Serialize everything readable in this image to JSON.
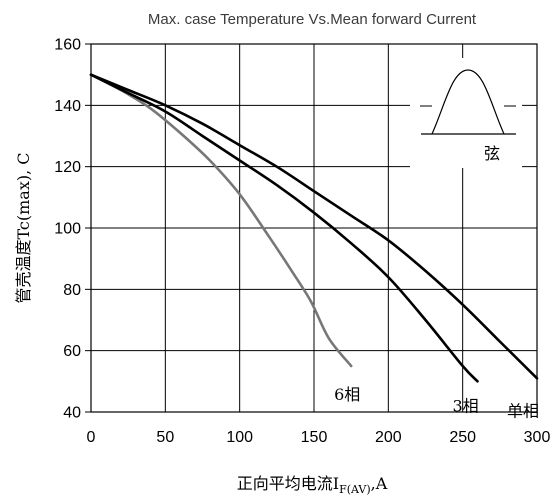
{
  "chart_data": {
    "type": "line",
    "title": "Max. case Temperature Vs.Mean forward Current",
    "xlabel": "正向平均电流I",
    "xlabel_sub": "F(AV)",
    "xlabel_unit": ",A",
    "ylabel": "管壳温度Tc(max), C",
    "xlim": [
      0,
      300
    ],
    "ylim": [
      40,
      160
    ],
    "xticks": [
      "0",
      "50",
      "100",
      "150",
      "200",
      "250",
      "300"
    ],
    "yticks": [
      "40",
      "60",
      "80",
      "100",
      "120",
      "140",
      "160"
    ],
    "grid": true,
    "series": [
      {
        "name": "6相",
        "color": "#777777",
        "x": [
          0,
          20,
          40,
          60,
          80,
          100,
          120,
          135,
          148,
          160,
          175
        ],
        "y": [
          150,
          145,
          139,
          131,
          122,
          111,
          97,
          86,
          76,
          64,
          55
        ]
      },
      {
        "name": "3相",
        "color": "#000000",
        "x": [
          0,
          25,
          50,
          75,
          100,
          125,
          150,
          175,
          200,
          225,
          250,
          260
        ],
        "y": [
          150,
          144,
          138,
          130,
          122,
          114,
          105,
          95,
          84,
          70,
          55,
          50
        ]
      },
      {
        "name": "单相",
        "color": "#000000",
        "x": [
          0,
          25,
          50,
          75,
          100,
          125,
          150,
          175,
          200,
          225,
          250,
          275,
          300
        ],
        "y": [
          150,
          145,
          140,
          134,
          127,
          120,
          112,
          104,
          96,
          86,
          75,
          63,
          51
        ]
      }
    ],
    "inset_label": "弦"
  }
}
